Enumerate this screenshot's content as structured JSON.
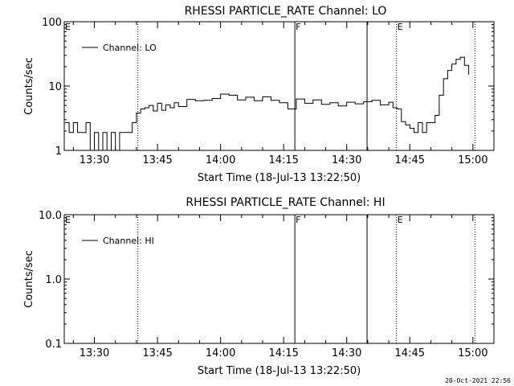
{
  "footer": {
    "timestamp": "20-Oct-2021 22:56"
  },
  "chart_data": [
    {
      "type": "line",
      "title": "RHESSI PARTICLE_RATE Channel: LO",
      "xlabel": "Start Time (18-Jul-13 13:22:50)",
      "ylabel": "Counts/sec",
      "yscale": "log",
      "ylim": [
        1,
        100
      ],
      "xlim": [
        "13:22:50",
        "15:05:00"
      ],
      "y_tick_labels": [
        "1",
        "10",
        "100"
      ],
      "x_tick_labels": [
        "13:30",
        "13:45",
        "14:00",
        "14:15",
        "14:30",
        "14:45",
        "15:00"
      ],
      "legend": {
        "entries": [
          "Channel: LO"
        ],
        "placement": "top-left"
      },
      "grid": false,
      "markers": [
        {
          "time": "13:22:50",
          "label": "E",
          "style": "none"
        },
        {
          "time": "13:40:20",
          "label": "",
          "style": "dotted"
        },
        {
          "time": "14:17:40",
          "label": "F",
          "style": "solid"
        },
        {
          "time": "14:34:50",
          "label": "",
          "style": "solid"
        },
        {
          "time": "14:41:50",
          "label": "E",
          "style": "dotted"
        },
        {
          "time": "15:00:30",
          "label": "",
          "style": "dotted"
        }
      ],
      "series": [
        {
          "name": "Channel: LO",
          "x": [
            "13:23:00",
            "13:24:00",
            "13:25:00",
            "13:26:00",
            "13:27:00",
            "13:28:00",
            "13:29:00",
            "13:30:00",
            "13:31:00",
            "13:32:00",
            "13:33:00",
            "13:34:00",
            "13:35:00",
            "13:36:00",
            "13:37:00",
            "13:38:00",
            "13:39:00",
            "13:40:00",
            "13:41:00",
            "13:42:00",
            "13:43:00",
            "13:44:00",
            "13:45:00",
            "13:46:00",
            "13:47:00",
            "13:48:00",
            "13:49:00",
            "13:50:00",
            "13:52:00",
            "13:54:00",
            "13:56:00",
            "13:58:00",
            "14:00:00",
            "14:02:00",
            "14:04:00",
            "14:06:00",
            "14:08:00",
            "14:10:00",
            "14:12:00",
            "14:14:00",
            "14:16:00",
            "14:18:00",
            "14:20:00",
            "14:22:00",
            "14:24:00",
            "14:26:00",
            "14:28:00",
            "14:30:00",
            "14:32:00",
            "14:34:00",
            "14:36:00",
            "14:38:00",
            "14:40:00",
            "14:41:00",
            "14:42:00",
            "14:43:00",
            "14:44:00",
            "14:45:00",
            "14:46:00",
            "14:47:00",
            "14:48:00",
            "14:49:00",
            "14:50:00",
            "14:51:00",
            "14:52:00",
            "14:53:00",
            "14:54:00",
            "14:55:00",
            "14:56:00",
            "14:57:00",
            "14:58:00",
            "14:59:00"
          ],
          "y": [
            2.7,
            1.9,
            2.7,
            1.9,
            1.9,
            2.7,
            1.0,
            1.9,
            1.0,
            1.9,
            1.0,
            1.9,
            1.0,
            1.9,
            1.9,
            1.9,
            2.7,
            3.8,
            4.4,
            4.6,
            5.0,
            4.1,
            5.4,
            4.2,
            5.1,
            4.6,
            5.5,
            4.8,
            6.2,
            5.9,
            6.0,
            6.4,
            7.5,
            7.2,
            6.1,
            6.7,
            5.9,
            6.8,
            6.0,
            5.5,
            4.4,
            6.3,
            5.4,
            6.1,
            5.2,
            5.5,
            4.9,
            5.6,
            5.3,
            5.7,
            6.0,
            5.1,
            5.6,
            4.6,
            4.4,
            2.8,
            2.5,
            2.2,
            1.9,
            2.7,
            1.9,
            2.7,
            2.7,
            3.5,
            7.2,
            13.0,
            17.5,
            22.0,
            26.0,
            28.0,
            21.0,
            15.0
          ]
        }
      ]
    },
    {
      "type": "line",
      "title": "RHESSI PARTICLE_RATE Channel: HI",
      "xlabel": "Start Time (18-Jul-13 13:22:50)",
      "ylabel": "Counts/sec",
      "yscale": "log",
      "ylim": [
        0.1,
        10.0
      ],
      "xlim": [
        "13:22:50",
        "15:05:00"
      ],
      "y_tick_labels": [
        "0.1",
        "1.0",
        "10.0"
      ],
      "x_tick_labels": [
        "13:30",
        "13:45",
        "14:00",
        "14:15",
        "14:30",
        "14:45",
        "15:00"
      ],
      "legend": {
        "entries": [
          "Channel: HI"
        ],
        "placement": "top-left"
      },
      "grid": false,
      "markers": [
        {
          "time": "13:22:50",
          "label": "E",
          "style": "none"
        },
        {
          "time": "13:40:20",
          "label": "",
          "style": "dotted"
        },
        {
          "time": "14:17:40",
          "label": "F",
          "style": "solid"
        },
        {
          "time": "14:34:50",
          "label": "",
          "style": "solid"
        },
        {
          "time": "14:41:50",
          "label": "E",
          "style": "dotted"
        },
        {
          "time": "15:00:30",
          "label": "",
          "style": "dotted"
        }
      ],
      "series": [
        {
          "name": "Channel: HI",
          "x": [],
          "y": []
        }
      ]
    }
  ]
}
